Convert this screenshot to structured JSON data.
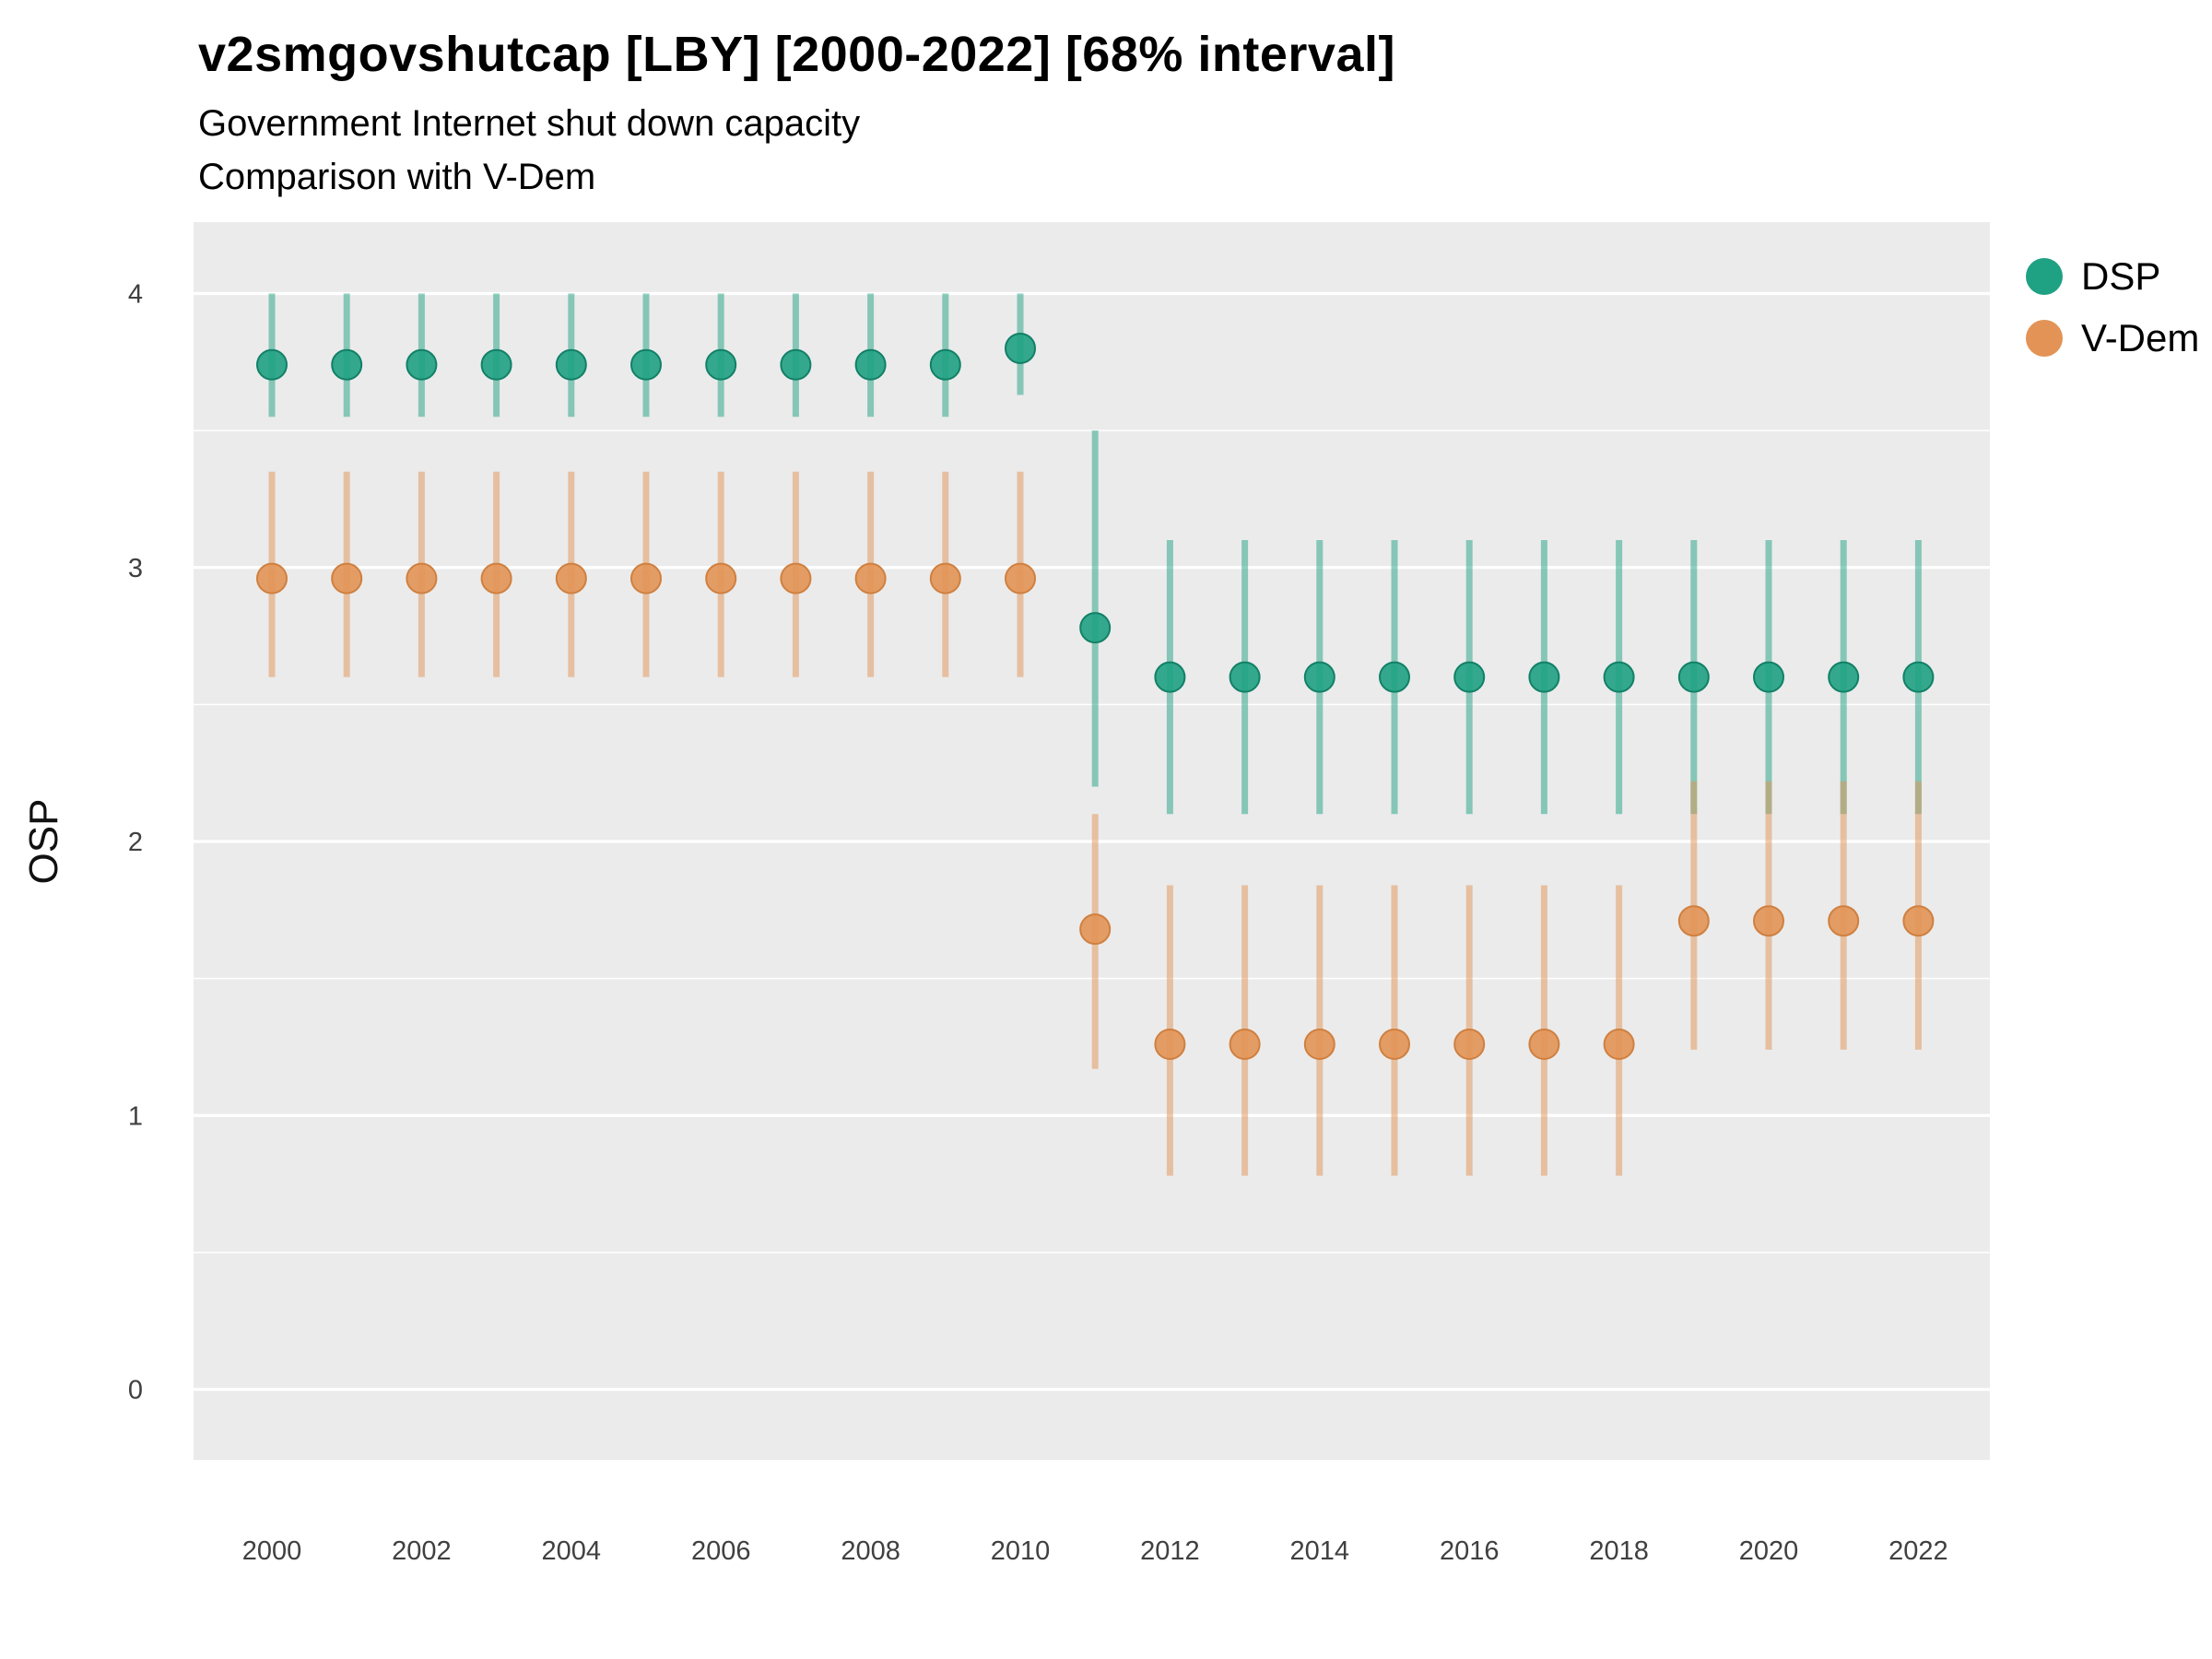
{
  "chart_data": {
    "type": "pointrange",
    "title": "v2smgovshutcap [LBY] [2000-2022] [68% interval]",
    "subtitle1": "Government Internet shut down capacity",
    "subtitle2": "Comparison with V-Dem",
    "ylabel": "OSP",
    "interval": "68%",
    "ylim": [
      -0.26,
      4.26
    ],
    "yticks": [
      0,
      1,
      2,
      3,
      4
    ],
    "xticks": [
      2000,
      2002,
      2004,
      2006,
      2008,
      2010,
      2012,
      2014,
      2016,
      2018,
      2020,
      2022
    ],
    "legend_position": "right",
    "grid": "horizontal-white-on-gray",
    "panel_background": "#EBEBEB",
    "series": [
      {
        "name": "DSP",
        "color": "#1FA183",
        "stroke": "#128066",
        "points": [
          {
            "x": 2000,
            "y": 3.74,
            "lo": 3.55,
            "hi": 4.0
          },
          {
            "x": 2001,
            "y": 3.74,
            "lo": 3.55,
            "hi": 4.0
          },
          {
            "x": 2002,
            "y": 3.74,
            "lo": 3.55,
            "hi": 4.0
          },
          {
            "x": 2003,
            "y": 3.74,
            "lo": 3.55,
            "hi": 4.0
          },
          {
            "x": 2004,
            "y": 3.74,
            "lo": 3.55,
            "hi": 4.0
          },
          {
            "x": 2005,
            "y": 3.74,
            "lo": 3.55,
            "hi": 4.0
          },
          {
            "x": 2006,
            "y": 3.74,
            "lo": 3.55,
            "hi": 4.0
          },
          {
            "x": 2007,
            "y": 3.74,
            "lo": 3.55,
            "hi": 4.0
          },
          {
            "x": 2008,
            "y": 3.74,
            "lo": 3.55,
            "hi": 4.0
          },
          {
            "x": 2009,
            "y": 3.74,
            "lo": 3.55,
            "hi": 4.0
          },
          {
            "x": 2010,
            "y": 3.8,
            "lo": 3.63,
            "hi": 4.0
          },
          {
            "x": 2011,
            "y": 2.78,
            "lo": 2.2,
            "hi": 3.5
          },
          {
            "x": 2012,
            "y": 2.6,
            "lo": 2.1,
            "hi": 3.1
          },
          {
            "x": 2013,
            "y": 2.6,
            "lo": 2.1,
            "hi": 3.1
          },
          {
            "x": 2014,
            "y": 2.6,
            "lo": 2.1,
            "hi": 3.1
          },
          {
            "x": 2015,
            "y": 2.6,
            "lo": 2.1,
            "hi": 3.1
          },
          {
            "x": 2016,
            "y": 2.6,
            "lo": 2.1,
            "hi": 3.1
          },
          {
            "x": 2017,
            "y": 2.6,
            "lo": 2.1,
            "hi": 3.1
          },
          {
            "x": 2018,
            "y": 2.6,
            "lo": 2.1,
            "hi": 3.1
          },
          {
            "x": 2019,
            "y": 2.6,
            "lo": 2.1,
            "hi": 3.1
          },
          {
            "x": 2020,
            "y": 2.6,
            "lo": 2.1,
            "hi": 3.1
          },
          {
            "x": 2021,
            "y": 2.6,
            "lo": 2.1,
            "hi": 3.1
          },
          {
            "x": 2022,
            "y": 2.6,
            "lo": 2.1,
            "hi": 3.1
          }
        ]
      },
      {
        "name": "V-Dem",
        "color": "#E29355",
        "stroke": "#CF8040",
        "points": [
          {
            "x": 2000,
            "y": 2.96,
            "lo": 2.6,
            "hi": 3.35
          },
          {
            "x": 2001,
            "y": 2.96,
            "lo": 2.6,
            "hi": 3.35
          },
          {
            "x": 2002,
            "y": 2.96,
            "lo": 2.6,
            "hi": 3.35
          },
          {
            "x": 2003,
            "y": 2.96,
            "lo": 2.6,
            "hi": 3.35
          },
          {
            "x": 2004,
            "y": 2.96,
            "lo": 2.6,
            "hi": 3.35
          },
          {
            "x": 2005,
            "y": 2.96,
            "lo": 2.6,
            "hi": 3.35
          },
          {
            "x": 2006,
            "y": 2.96,
            "lo": 2.6,
            "hi": 3.35
          },
          {
            "x": 2007,
            "y": 2.96,
            "lo": 2.6,
            "hi": 3.35
          },
          {
            "x": 2008,
            "y": 2.96,
            "lo": 2.6,
            "hi": 3.35
          },
          {
            "x": 2009,
            "y": 2.96,
            "lo": 2.6,
            "hi": 3.35
          },
          {
            "x": 2010,
            "y": 2.96,
            "lo": 2.6,
            "hi": 3.35
          },
          {
            "x": 2011,
            "y": 1.68,
            "lo": 1.17,
            "hi": 2.1
          },
          {
            "x": 2012,
            "y": 1.26,
            "lo": 0.78,
            "hi": 1.84
          },
          {
            "x": 2013,
            "y": 1.26,
            "lo": 0.78,
            "hi": 1.84
          },
          {
            "x": 2014,
            "y": 1.26,
            "lo": 0.78,
            "hi": 1.84
          },
          {
            "x": 2015,
            "y": 1.26,
            "lo": 0.78,
            "hi": 1.84
          },
          {
            "x": 2016,
            "y": 1.26,
            "lo": 0.78,
            "hi": 1.84
          },
          {
            "x": 2017,
            "y": 1.26,
            "lo": 0.78,
            "hi": 1.84
          },
          {
            "x": 2018,
            "y": 1.26,
            "lo": 0.78,
            "hi": 1.84
          },
          {
            "x": 2019,
            "y": 1.71,
            "lo": 1.24,
            "hi": 2.22
          },
          {
            "x": 2020,
            "y": 1.71,
            "lo": 1.24,
            "hi": 2.22
          },
          {
            "x": 2021,
            "y": 1.71,
            "lo": 1.24,
            "hi": 2.22
          },
          {
            "x": 2022,
            "y": 1.71,
            "lo": 1.24,
            "hi": 2.22
          }
        ]
      }
    ]
  }
}
